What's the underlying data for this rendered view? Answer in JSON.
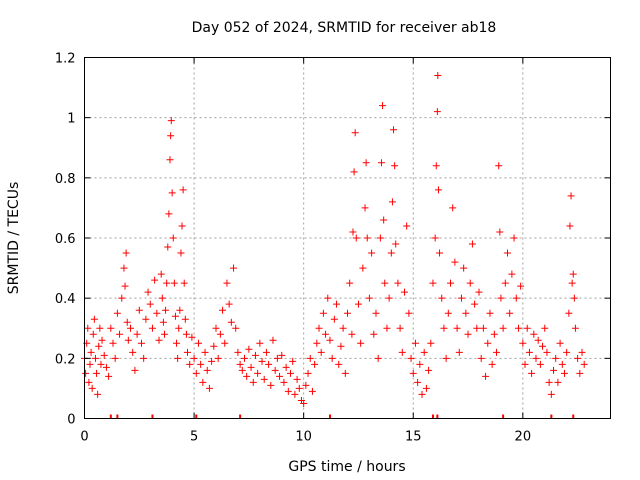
{
  "chart_data": {
    "type": "scatter",
    "title": "Day 052 of 2024, SRMTID for receiver ab18",
    "xlabel": "GPS time / hours",
    "ylabel": "SRMTID / TECUs",
    "xlim": [
      0,
      24
    ],
    "ylim": [
      0,
      1.2
    ],
    "xticks": [
      0,
      5,
      10,
      15,
      20
    ],
    "xtick_labels": [
      "0",
      "5",
      "10",
      "15",
      "20"
    ],
    "yticks": [
      0,
      0.2,
      0.4,
      0.6,
      0.8,
      1.0,
      1.2
    ],
    "ytick_labels": [
      "0",
      "0.2",
      "0.4",
      "0.6",
      "0.8",
      "1",
      "1.2"
    ],
    "grid": true,
    "marker": "plus",
    "color": "#ff0000",
    "series": [
      {
        "name": "SRMTID",
        "points": [
          [
            0.0,
            0.2
          ],
          [
            0.05,
            0.15
          ],
          [
            0.1,
            0.25
          ],
          [
            0.15,
            0.3
          ],
          [
            0.2,
            0.12
          ],
          [
            0.25,
            0.18
          ],
          [
            0.3,
            0.22
          ],
          [
            0.35,
            0.1
          ],
          [
            0.4,
            0.28
          ],
          [
            0.45,
            0.33
          ],
          [
            0.5,
            0.2
          ],
          [
            0.55,
            0.15
          ],
          [
            0.6,
            0.08
          ],
          [
            0.65,
            0.24
          ],
          [
            0.7,
            0.3
          ],
          [
            0.75,
            0.18
          ],
          [
            0.8,
            0.26
          ],
          [
            0.9,
            0.21
          ],
          [
            1.0,
            0.17
          ],
          [
            1.1,
            0.14
          ],
          [
            1.2,
            0.3
          ],
          [
            1.3,
            0.25
          ],
          [
            1.4,
            0.2
          ],
          [
            1.5,
            0.35
          ],
          [
            1.6,
            0.28
          ],
          [
            1.7,
            0.4
          ],
          [
            1.8,
            0.5
          ],
          [
            1.85,
            0.44
          ],
          [
            1.9,
            0.55
          ],
          [
            1.95,
            0.32
          ],
          [
            2.0,
            0.26
          ],
          [
            2.1,
            0.3
          ],
          [
            2.2,
            0.22
          ],
          [
            2.3,
            0.16
          ],
          [
            2.4,
            0.28
          ],
          [
            2.5,
            0.36
          ],
          [
            2.6,
            0.25
          ],
          [
            2.7,
            0.2
          ],
          [
            2.8,
            0.33
          ],
          [
            2.9,
            0.42
          ],
          [
            3.0,
            0.38
          ],
          [
            3.1,
            0.3
          ],
          [
            3.2,
            0.46
          ],
          [
            3.3,
            0.35
          ],
          [
            3.4,
            0.26
          ],
          [
            3.5,
            0.48
          ],
          [
            3.55,
            0.4
          ],
          [
            3.6,
            0.32
          ],
          [
            3.65,
            0.28
          ],
          [
            3.7,
            0.36
          ],
          [
            3.75,
            0.45
          ],
          [
            3.8,
            0.57
          ],
          [
            3.85,
            0.68
          ],
          [
            3.9,
            0.86
          ],
          [
            3.93,
            0.94
          ],
          [
            3.96,
            0.99
          ],
          [
            4.0,
            0.75
          ],
          [
            4.05,
            0.6
          ],
          [
            4.1,
            0.45
          ],
          [
            4.15,
            0.34
          ],
          [
            4.2,
            0.25
          ],
          [
            4.25,
            0.2
          ],
          [
            4.3,
            0.3
          ],
          [
            4.35,
            0.36
          ],
          [
            4.4,
            0.55
          ],
          [
            4.45,
            0.64
          ],
          [
            4.5,
            0.76
          ],
          [
            4.55,
            0.45
          ],
          [
            4.6,
            0.33
          ],
          [
            4.65,
            0.28
          ],
          [
            4.7,
            0.22
          ],
          [
            4.8,
            0.18
          ],
          [
            4.9,
            0.27
          ],
          [
            5.0,
            0.2
          ],
          [
            5.1,
            0.15
          ],
          [
            5.2,
            0.25
          ],
          [
            5.3,
            0.18
          ],
          [
            5.4,
            0.12
          ],
          [
            5.5,
            0.22
          ],
          [
            5.6,
            0.16
          ],
          [
            5.7,
            0.1
          ],
          [
            5.8,
            0.19
          ],
          [
            5.9,
            0.24
          ],
          [
            6.0,
            0.3
          ],
          [
            6.1,
            0.2
          ],
          [
            6.2,
            0.28
          ],
          [
            6.3,
            0.36
          ],
          [
            6.4,
            0.25
          ],
          [
            6.5,
            0.45
          ],
          [
            6.6,
            0.38
          ],
          [
            6.7,
            0.32
          ],
          [
            6.8,
            0.5
          ],
          [
            6.9,
            0.3
          ],
          [
            7.0,
            0.22
          ],
          [
            7.1,
            0.18
          ],
          [
            7.2,
            0.16
          ],
          [
            7.3,
            0.2
          ],
          [
            7.4,
            0.14
          ],
          [
            7.5,
            0.23
          ],
          [
            7.6,
            0.17
          ],
          [
            7.7,
            0.12
          ],
          [
            7.8,
            0.21
          ],
          [
            7.9,
            0.15
          ],
          [
            8.0,
            0.25
          ],
          [
            8.1,
            0.19
          ],
          [
            8.2,
            0.13
          ],
          [
            8.3,
            0.22
          ],
          [
            8.4,
            0.18
          ],
          [
            8.5,
            0.11
          ],
          [
            8.6,
            0.26
          ],
          [
            8.7,
            0.16
          ],
          [
            8.8,
            0.2
          ],
          [
            8.9,
            0.14
          ],
          [
            9.0,
            0.21
          ],
          [
            9.1,
            0.12
          ],
          [
            9.2,
            0.17
          ],
          [
            9.3,
            0.09
          ],
          [
            9.4,
            0.15
          ],
          [
            9.5,
            0.19
          ],
          [
            9.6,
            0.08
          ],
          [
            9.7,
            0.13
          ],
          [
            9.8,
            0.1
          ],
          [
            9.9,
            0.06
          ],
          [
            10.0,
            0.05
          ],
          [
            10.1,
            0.11
          ],
          [
            10.2,
            0.15
          ],
          [
            10.3,
            0.2
          ],
          [
            10.4,
            0.09
          ],
          [
            10.5,
            0.18
          ],
          [
            10.6,
            0.25
          ],
          [
            10.7,
            0.3
          ],
          [
            10.8,
            0.22
          ],
          [
            10.9,
            0.35
          ],
          [
            11.0,
            0.28
          ],
          [
            11.1,
            0.4
          ],
          [
            11.2,
            0.26
          ],
          [
            11.3,
            0.2
          ],
          [
            11.4,
            0.33
          ],
          [
            11.5,
            0.38
          ],
          [
            11.6,
            0.18
          ],
          [
            11.7,
            0.24
          ],
          [
            11.8,
            0.3
          ],
          [
            11.9,
            0.15
          ],
          [
            12.0,
            0.35
          ],
          [
            12.1,
            0.45
          ],
          [
            12.2,
            0.28
          ],
          [
            12.25,
            0.62
          ],
          [
            12.3,
            0.82
          ],
          [
            12.35,
            0.95
          ],
          [
            12.4,
            0.6
          ],
          [
            12.5,
            0.38
          ],
          [
            12.6,
            0.25
          ],
          [
            12.7,
            0.5
          ],
          [
            12.8,
            0.7
          ],
          [
            12.85,
            0.85
          ],
          [
            12.9,
            0.6
          ],
          [
            13.0,
            0.4
          ],
          [
            13.1,
            0.55
          ],
          [
            13.2,
            0.28
          ],
          [
            13.3,
            0.35
          ],
          [
            13.4,
            0.2
          ],
          [
            13.5,
            0.6
          ],
          [
            13.55,
            0.85
          ],
          [
            13.6,
            1.04
          ],
          [
            13.65,
            0.66
          ],
          [
            13.7,
            0.45
          ],
          [
            13.8,
            0.3
          ],
          [
            13.9,
            0.4
          ],
          [
            14.0,
            0.55
          ],
          [
            14.05,
            0.72
          ],
          [
            14.1,
            0.96
          ],
          [
            14.15,
            0.84
          ],
          [
            14.2,
            0.58
          ],
          [
            14.3,
            0.45
          ],
          [
            14.4,
            0.3
          ],
          [
            14.5,
            0.22
          ],
          [
            14.6,
            0.42
          ],
          [
            14.7,
            0.64
          ],
          [
            14.8,
            0.35
          ],
          [
            14.9,
            0.2
          ],
          [
            15.0,
            0.15
          ],
          [
            15.1,
            0.25
          ],
          [
            15.2,
            0.12
          ],
          [
            15.3,
            0.18
          ],
          [
            15.4,
            0.08
          ],
          [
            15.5,
            0.22
          ],
          [
            15.6,
            0.1
          ],
          [
            15.7,
            0.16
          ],
          [
            15.8,
            0.25
          ],
          [
            15.9,
            0.45
          ],
          [
            16.0,
            0.6
          ],
          [
            16.05,
            0.84
          ],
          [
            16.1,
            1.02
          ],
          [
            16.12,
            1.14
          ],
          [
            16.15,
            0.76
          ],
          [
            16.2,
            0.55
          ],
          [
            16.3,
            0.4
          ],
          [
            16.4,
            0.3
          ],
          [
            16.5,
            0.2
          ],
          [
            16.6,
            0.35
          ],
          [
            16.7,
            0.45
          ],
          [
            16.8,
            0.7
          ],
          [
            16.9,
            0.52
          ],
          [
            17.0,
            0.3
          ],
          [
            17.1,
            0.22
          ],
          [
            17.2,
            0.4
          ],
          [
            17.3,
            0.5
          ],
          [
            17.4,
            0.35
          ],
          [
            17.5,
            0.28
          ],
          [
            17.6,
            0.45
          ],
          [
            17.7,
            0.58
          ],
          [
            17.8,
            0.38
          ],
          [
            17.9,
            0.3
          ],
          [
            18.0,
            0.42
          ],
          [
            18.1,
            0.2
          ],
          [
            18.2,
            0.3
          ],
          [
            18.3,
            0.14
          ],
          [
            18.4,
            0.25
          ],
          [
            18.5,
            0.35
          ],
          [
            18.6,
            0.18
          ],
          [
            18.7,
            0.28
          ],
          [
            18.8,
            0.22
          ],
          [
            18.9,
            0.84
          ],
          [
            18.95,
            0.62
          ],
          [
            19.0,
            0.4
          ],
          [
            19.1,
            0.3
          ],
          [
            19.2,
            0.45
          ],
          [
            19.3,
            0.55
          ],
          [
            19.4,
            0.35
          ],
          [
            19.5,
            0.48
          ],
          [
            19.6,
            0.6
          ],
          [
            19.7,
            0.4
          ],
          [
            19.8,
            0.3
          ],
          [
            19.9,
            0.44
          ],
          [
            20.0,
            0.25
          ],
          [
            20.1,
            0.18
          ],
          [
            20.2,
            0.3
          ],
          [
            20.3,
            0.22
          ],
          [
            20.4,
            0.15
          ],
          [
            20.5,
            0.28
          ],
          [
            20.6,
            0.2
          ],
          [
            20.7,
            0.26
          ],
          [
            20.8,
            0.18
          ],
          [
            20.9,
            0.24
          ],
          [
            21.0,
            0.3
          ],
          [
            21.1,
            0.22
          ],
          [
            21.2,
            0.12
          ],
          [
            21.3,
            0.08
          ],
          [
            21.4,
            0.16
          ],
          [
            21.5,
            0.2
          ],
          [
            21.6,
            0.12
          ],
          [
            21.7,
            0.25
          ],
          [
            21.8,
            0.18
          ],
          [
            21.9,
            0.15
          ],
          [
            22.0,
            0.22
          ],
          [
            22.1,
            0.35
          ],
          [
            22.15,
            0.64
          ],
          [
            22.2,
            0.74
          ],
          [
            22.25,
            0.45
          ],
          [
            22.3,
            0.48
          ],
          [
            22.35,
            0.4
          ],
          [
            22.4,
            0.3
          ],
          [
            22.5,
            0.2
          ],
          [
            22.6,
            0.15
          ],
          [
            22.7,
            0.22
          ],
          [
            22.8,
            0.18
          ]
        ]
      }
    ],
    "rug_x": [
      1.2,
      1.5,
      3.1,
      5.1,
      7.1,
      11.2,
      15.9,
      16.1,
      19.1,
      21.3,
      22.3
    ]
  }
}
